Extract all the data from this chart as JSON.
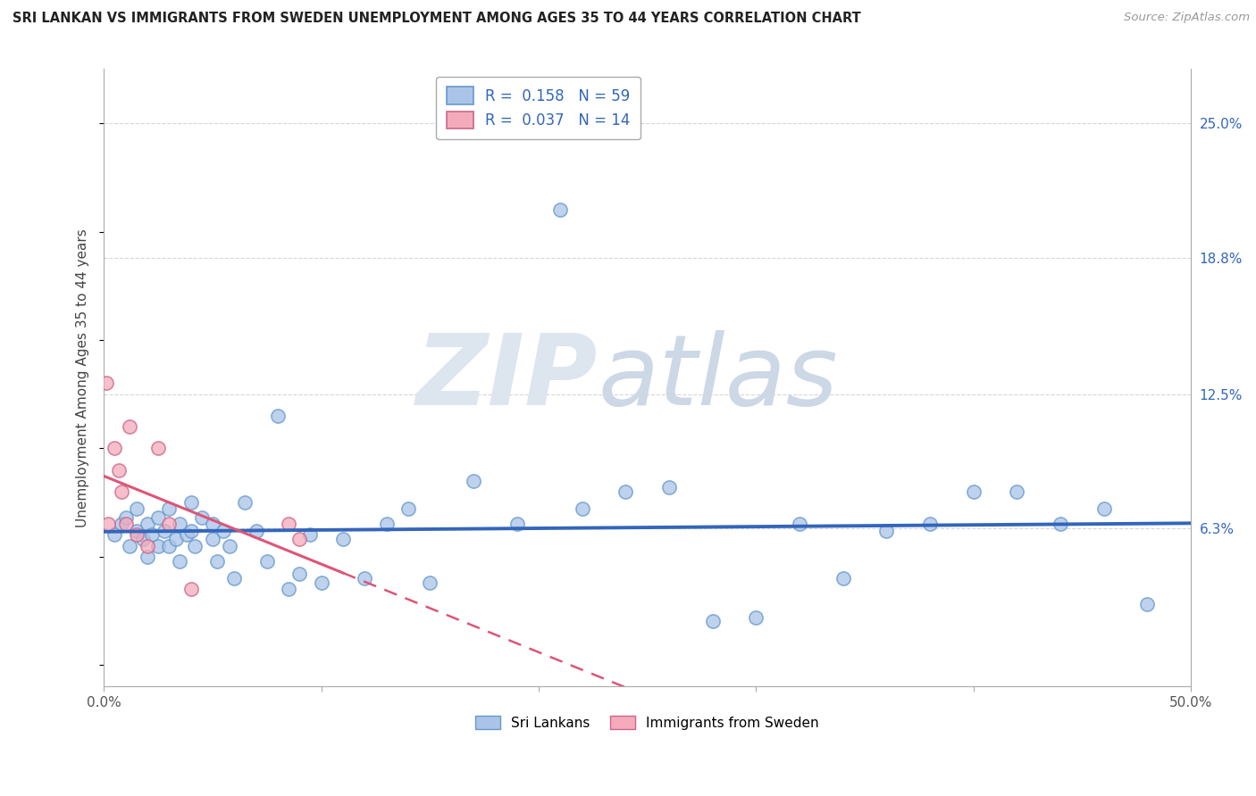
{
  "title": "SRI LANKAN VS IMMIGRANTS FROM SWEDEN UNEMPLOYMENT AMONG AGES 35 TO 44 YEARS CORRELATION CHART",
  "source": "Source: ZipAtlas.com",
  "ylabel": "Unemployment Among Ages 35 to 44 years",
  "xlim": [
    0.0,
    0.5
  ],
  "ylim": [
    -0.01,
    0.275
  ],
  "sri_lankan_color": "#aac4e8",
  "sri_lankan_edge": "#6699cc",
  "immigrants_color": "#f4aabb",
  "immigrants_edge": "#cc6688",
  "sri_lankan_line_color": "#3366bb",
  "immigrants_line_color": "#dd5577",
  "legend_sri_R": "0.158",
  "legend_sri_N": "59",
  "legend_imm_R": "0.037",
  "legend_imm_N": "14",
  "ytick_positions": [
    0.0,
    0.063,
    0.125,
    0.188,
    0.25
  ],
  "ytick_labels": [
    "",
    "6.3%",
    "12.5%",
    "18.8%",
    "25.0%"
  ],
  "xtick_positions": [
    0.0,
    0.1,
    0.2,
    0.3,
    0.4,
    0.5
  ],
  "xtick_labels": [
    "0.0%",
    "",
    "",
    "",
    "",
    "50.0%"
  ],
  "grid_color": "#cccccc",
  "background_color": "#ffffff",
  "sri_lankan_x": [
    0.005,
    0.008,
    0.01,
    0.012,
    0.015,
    0.015,
    0.018,
    0.02,
    0.02,
    0.022,
    0.025,
    0.025,
    0.028,
    0.03,
    0.03,
    0.033,
    0.035,
    0.035,
    0.038,
    0.04,
    0.04,
    0.042,
    0.045,
    0.05,
    0.05,
    0.052,
    0.055,
    0.058,
    0.06,
    0.065,
    0.07,
    0.075,
    0.08,
    0.085,
    0.09,
    0.095,
    0.1,
    0.11,
    0.12,
    0.13,
    0.14,
    0.15,
    0.17,
    0.19,
    0.21,
    0.22,
    0.24,
    0.26,
    0.28,
    0.3,
    0.32,
    0.34,
    0.36,
    0.38,
    0.4,
    0.42,
    0.44,
    0.46,
    0.48
  ],
  "sri_lankan_y": [
    0.06,
    0.065,
    0.068,
    0.055,
    0.062,
    0.072,
    0.058,
    0.05,
    0.065,
    0.06,
    0.055,
    0.068,
    0.062,
    0.055,
    0.072,
    0.058,
    0.065,
    0.048,
    0.06,
    0.062,
    0.075,
    0.055,
    0.068,
    0.058,
    0.065,
    0.048,
    0.062,
    0.055,
    0.04,
    0.075,
    0.062,
    0.048,
    0.115,
    0.035,
    0.042,
    0.06,
    0.038,
    0.058,
    0.04,
    0.065,
    0.072,
    0.038,
    0.085,
    0.065,
    0.21,
    0.072,
    0.08,
    0.082,
    0.02,
    0.022,
    0.065,
    0.04,
    0.062,
    0.065,
    0.08,
    0.08,
    0.065,
    0.072,
    0.028
  ],
  "immigrants_x": [
    0.001,
    0.002,
    0.005,
    0.007,
    0.008,
    0.01,
    0.012,
    0.015,
    0.02,
    0.025,
    0.03,
    0.04,
    0.085,
    0.09
  ],
  "immigrants_y": [
    0.13,
    0.065,
    0.1,
    0.09,
    0.08,
    0.065,
    0.11,
    0.06,
    0.055,
    0.1,
    0.065,
    0.035,
    0.065,
    0.058
  ],
  "watermark_zip_color": "#d5dde8",
  "watermark_atlas_color": "#c8d5e0"
}
